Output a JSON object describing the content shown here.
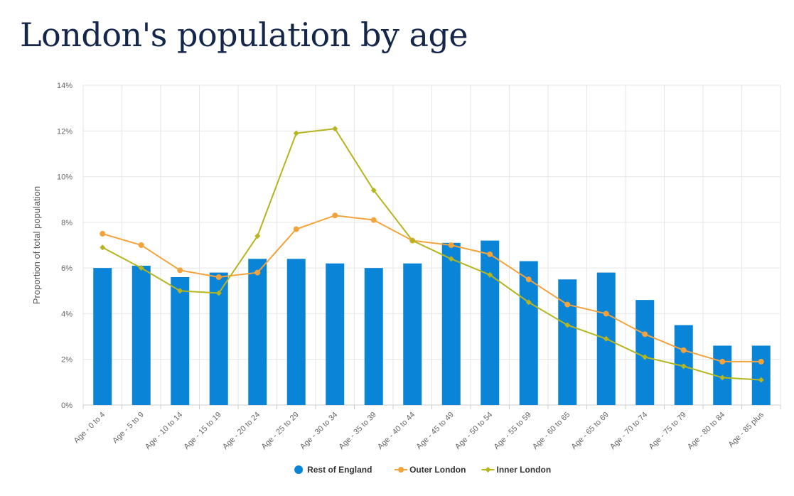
{
  "title": "London's population by age",
  "chart_data": {
    "type": "bar",
    "ylabel": "Proportion of total population",
    "xlabel": "",
    "ylim": [
      0,
      14
    ],
    "yticks": [
      0,
      2,
      4,
      6,
      8,
      10,
      12,
      14
    ],
    "ytick_labels": [
      "0%",
      "2%",
      "4%",
      "6%",
      "8%",
      "10%",
      "12%",
      "14%"
    ],
    "grid": true,
    "legend_position": "bottom",
    "categories": [
      "Age - 0 to 4",
      "Age - 5 to 9",
      "Age - 10 to 14",
      "Age - 15 to 19",
      "Age - 20 to 24",
      "Age - 25 to 29",
      "Age - 30 to 34",
      "Age - 35 to 39",
      "Age - 40 to 44",
      "Age - 45 to 49",
      "Age - 50 to 54",
      "Age - 55 to 59",
      "Age - 60 to 65",
      "Age - 65 to 69",
      "Age - 70 to 74",
      "Age - 75 to 79",
      "Age - 80 to 84",
      "Age - 85 plus"
    ],
    "series": [
      {
        "name": "Rest of England",
        "kind": "bar",
        "color": "#0a84d6",
        "marker": "circle",
        "values": [
          6.0,
          6.1,
          5.6,
          5.8,
          6.4,
          6.4,
          6.2,
          6.0,
          6.2,
          7.1,
          7.2,
          6.3,
          5.5,
          5.8,
          4.6,
          3.5,
          2.6,
          2.6
        ]
      },
      {
        "name": "Outer London",
        "kind": "line",
        "color": "#f3a33c",
        "marker": "circle",
        "values": [
          7.5,
          7.0,
          5.9,
          5.6,
          5.8,
          7.7,
          8.3,
          8.1,
          7.2,
          7.0,
          6.6,
          5.5,
          4.4,
          4.0,
          3.1,
          2.4,
          1.9,
          1.9
        ]
      },
      {
        "name": "Inner London",
        "kind": "line",
        "color": "#b5b51f",
        "marker": "diamond",
        "values": [
          6.9,
          6.0,
          5.0,
          4.9,
          7.4,
          11.9,
          12.1,
          9.4,
          7.2,
          6.4,
          5.7,
          4.5,
          3.5,
          2.9,
          2.1,
          1.7,
          1.2,
          1.1
        ]
      }
    ]
  }
}
